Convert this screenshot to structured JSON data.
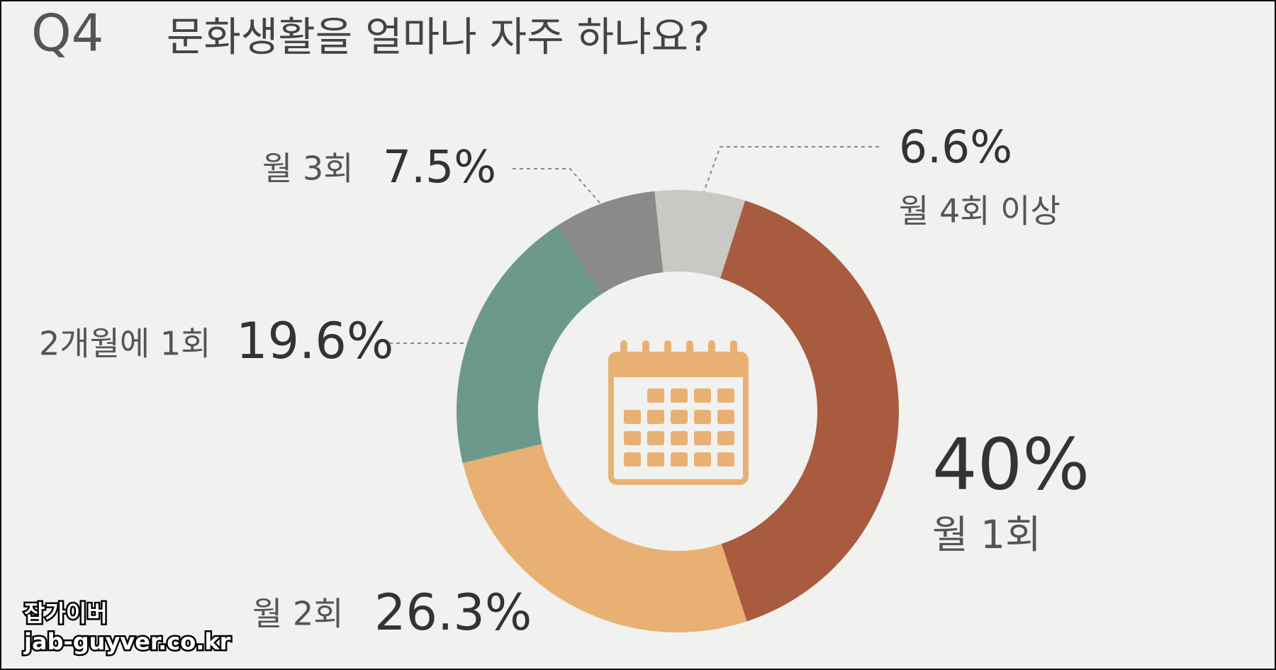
{
  "chart_data": {
    "type": "pie",
    "question_number": "Q4",
    "title": "문화생활을 얼마나 자주 하나요?",
    "categories": [
      "월 4회 이상",
      "월 1회",
      "월 2회",
      "2개월에 1회",
      "월 3회"
    ],
    "values": [
      6.6,
      40,
      26.3,
      19.6,
      7.5
    ],
    "value_labels": [
      "6.6%",
      "40%",
      "26.3%",
      "19.6%",
      "7.5%"
    ],
    "colors": [
      "#c8c8c5",
      "#a95b3f",
      "#e8b173",
      "#6c998b",
      "#8a8a88"
    ]
  },
  "watermark": {
    "name": "잡가이버",
    "url": "jab-guyver.co.kr"
  }
}
